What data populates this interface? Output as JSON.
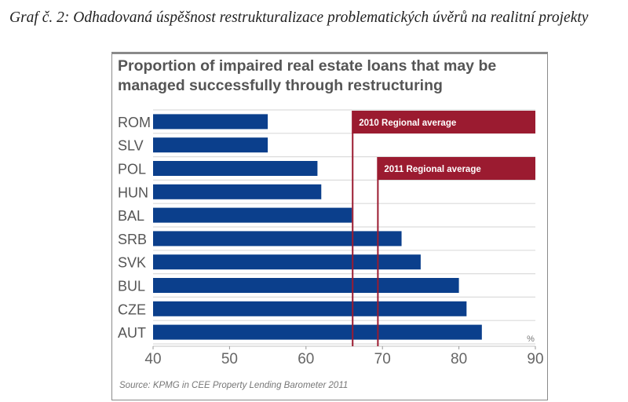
{
  "caption": "Graf č. 2: Odhadovaná úspěšnost restrukturalizace problematických úvěrů na realitní projekty",
  "chart_data": {
    "type": "bar",
    "orientation": "horizontal",
    "title": "Proportion of impaired real estate loans that may be managed successfully through restructuring",
    "categories": [
      "ROM",
      "SLV",
      "POL",
      "HUN",
      "BAL",
      "SRB",
      "SVK",
      "BUL",
      "CZE",
      "AUT"
    ],
    "values": [
      55,
      55,
      61.5,
      62,
      66,
      72.5,
      75,
      80,
      81,
      83
    ],
    "xlabel": "%",
    "ylabel": "",
    "xlim": [
      40,
      90
    ],
    "xticks": [
      40,
      50,
      60,
      70,
      80,
      90
    ],
    "grid": true,
    "bar_color": "#0b3f8c",
    "reference_lines": [
      {
        "label": "2010 Regional average",
        "value": 66,
        "color": "#9b1b30"
      },
      {
        "label": "2011 Regional average",
        "value": 69.3,
        "color": "#9b1b30"
      }
    ],
    "source": "Source: KPMG in CEE Property Lending Barometer 2011"
  }
}
